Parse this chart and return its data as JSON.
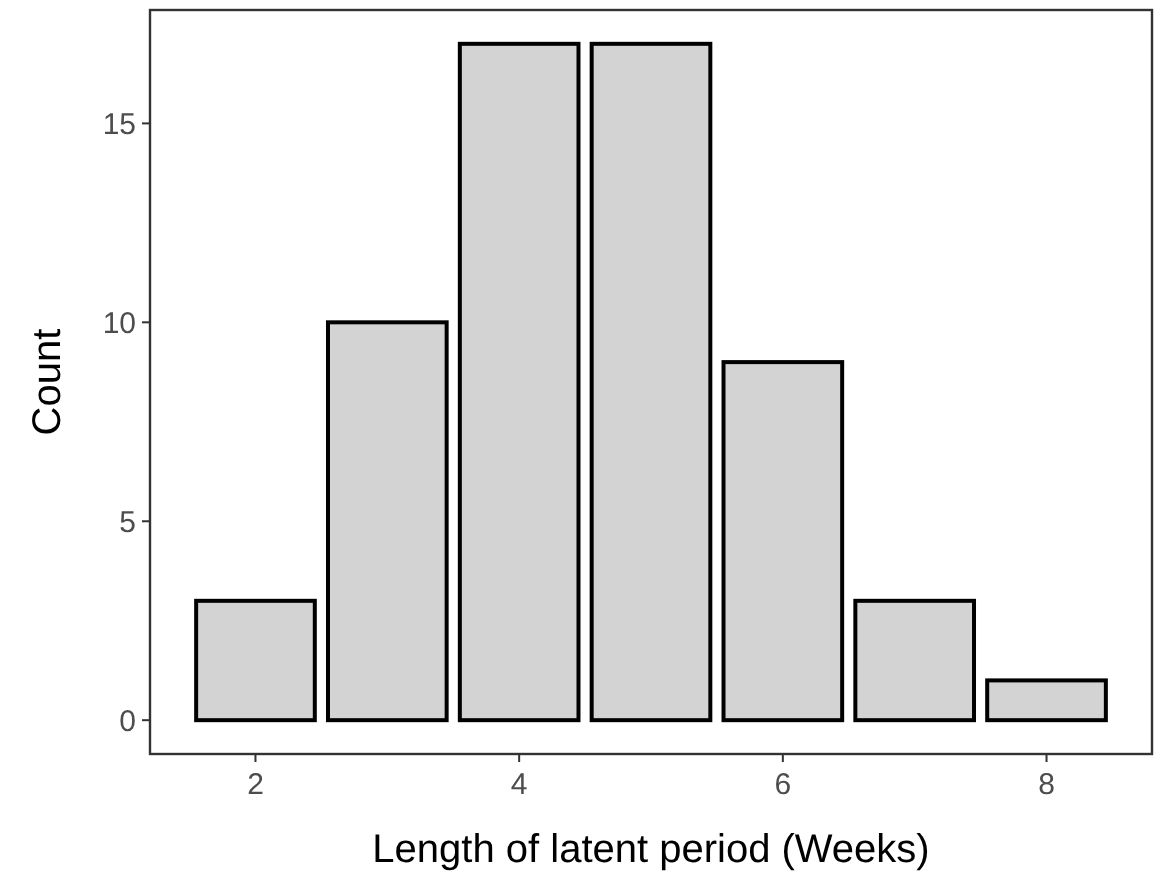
{
  "chart_data": {
    "type": "bar",
    "xlabel": "Length of latent period (Weeks)",
    "ylabel": "Count",
    "x": [
      2,
      3,
      4,
      5,
      6,
      7,
      8
    ],
    "values": [
      3,
      10,
      17,
      17,
      9,
      3,
      1
    ],
    "color": "#d3d3d3",
    "xlim": [
      1.2,
      8.8
    ],
    "xticks": [
      2,
      4,
      6,
      8
    ],
    "ylim": [
      -0.85,
      17.85
    ],
    "yticks": [
      0,
      5,
      10,
      15
    ],
    "grid": false
  }
}
